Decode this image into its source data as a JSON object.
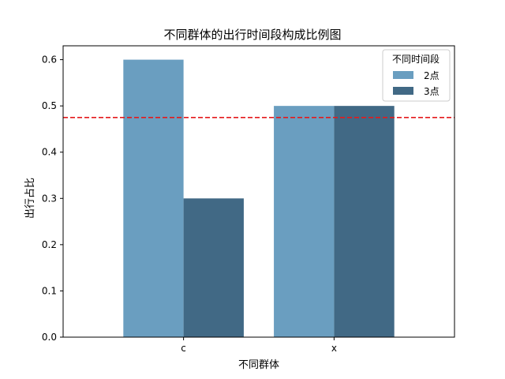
{
  "chart_data": {
    "type": "bar",
    "title": "不同群体的出行时间段构成比例图",
    "xlabel": "不同群体",
    "ylabel": "出行占比",
    "categories": [
      "c",
      "x"
    ],
    "series": [
      {
        "name": "2点",
        "values": [
          0.6,
          0.5
        ],
        "color": "#6a9ec0"
      },
      {
        "name": "3点",
        "values": [
          0.3,
          0.5
        ],
        "color": "#416985"
      }
    ],
    "ylim": [
      0,
      0.63
    ],
    "yticks": [
      "0.0",
      "0.1",
      "0.2",
      "0.3",
      "0.4",
      "0.5",
      "0.6"
    ],
    "reference_line": {
      "value": 0.475,
      "color": "#e41a1c",
      "style": "dashed"
    },
    "legend": {
      "title": "不同时间段",
      "placement": "top-right"
    },
    "grid": false
  }
}
